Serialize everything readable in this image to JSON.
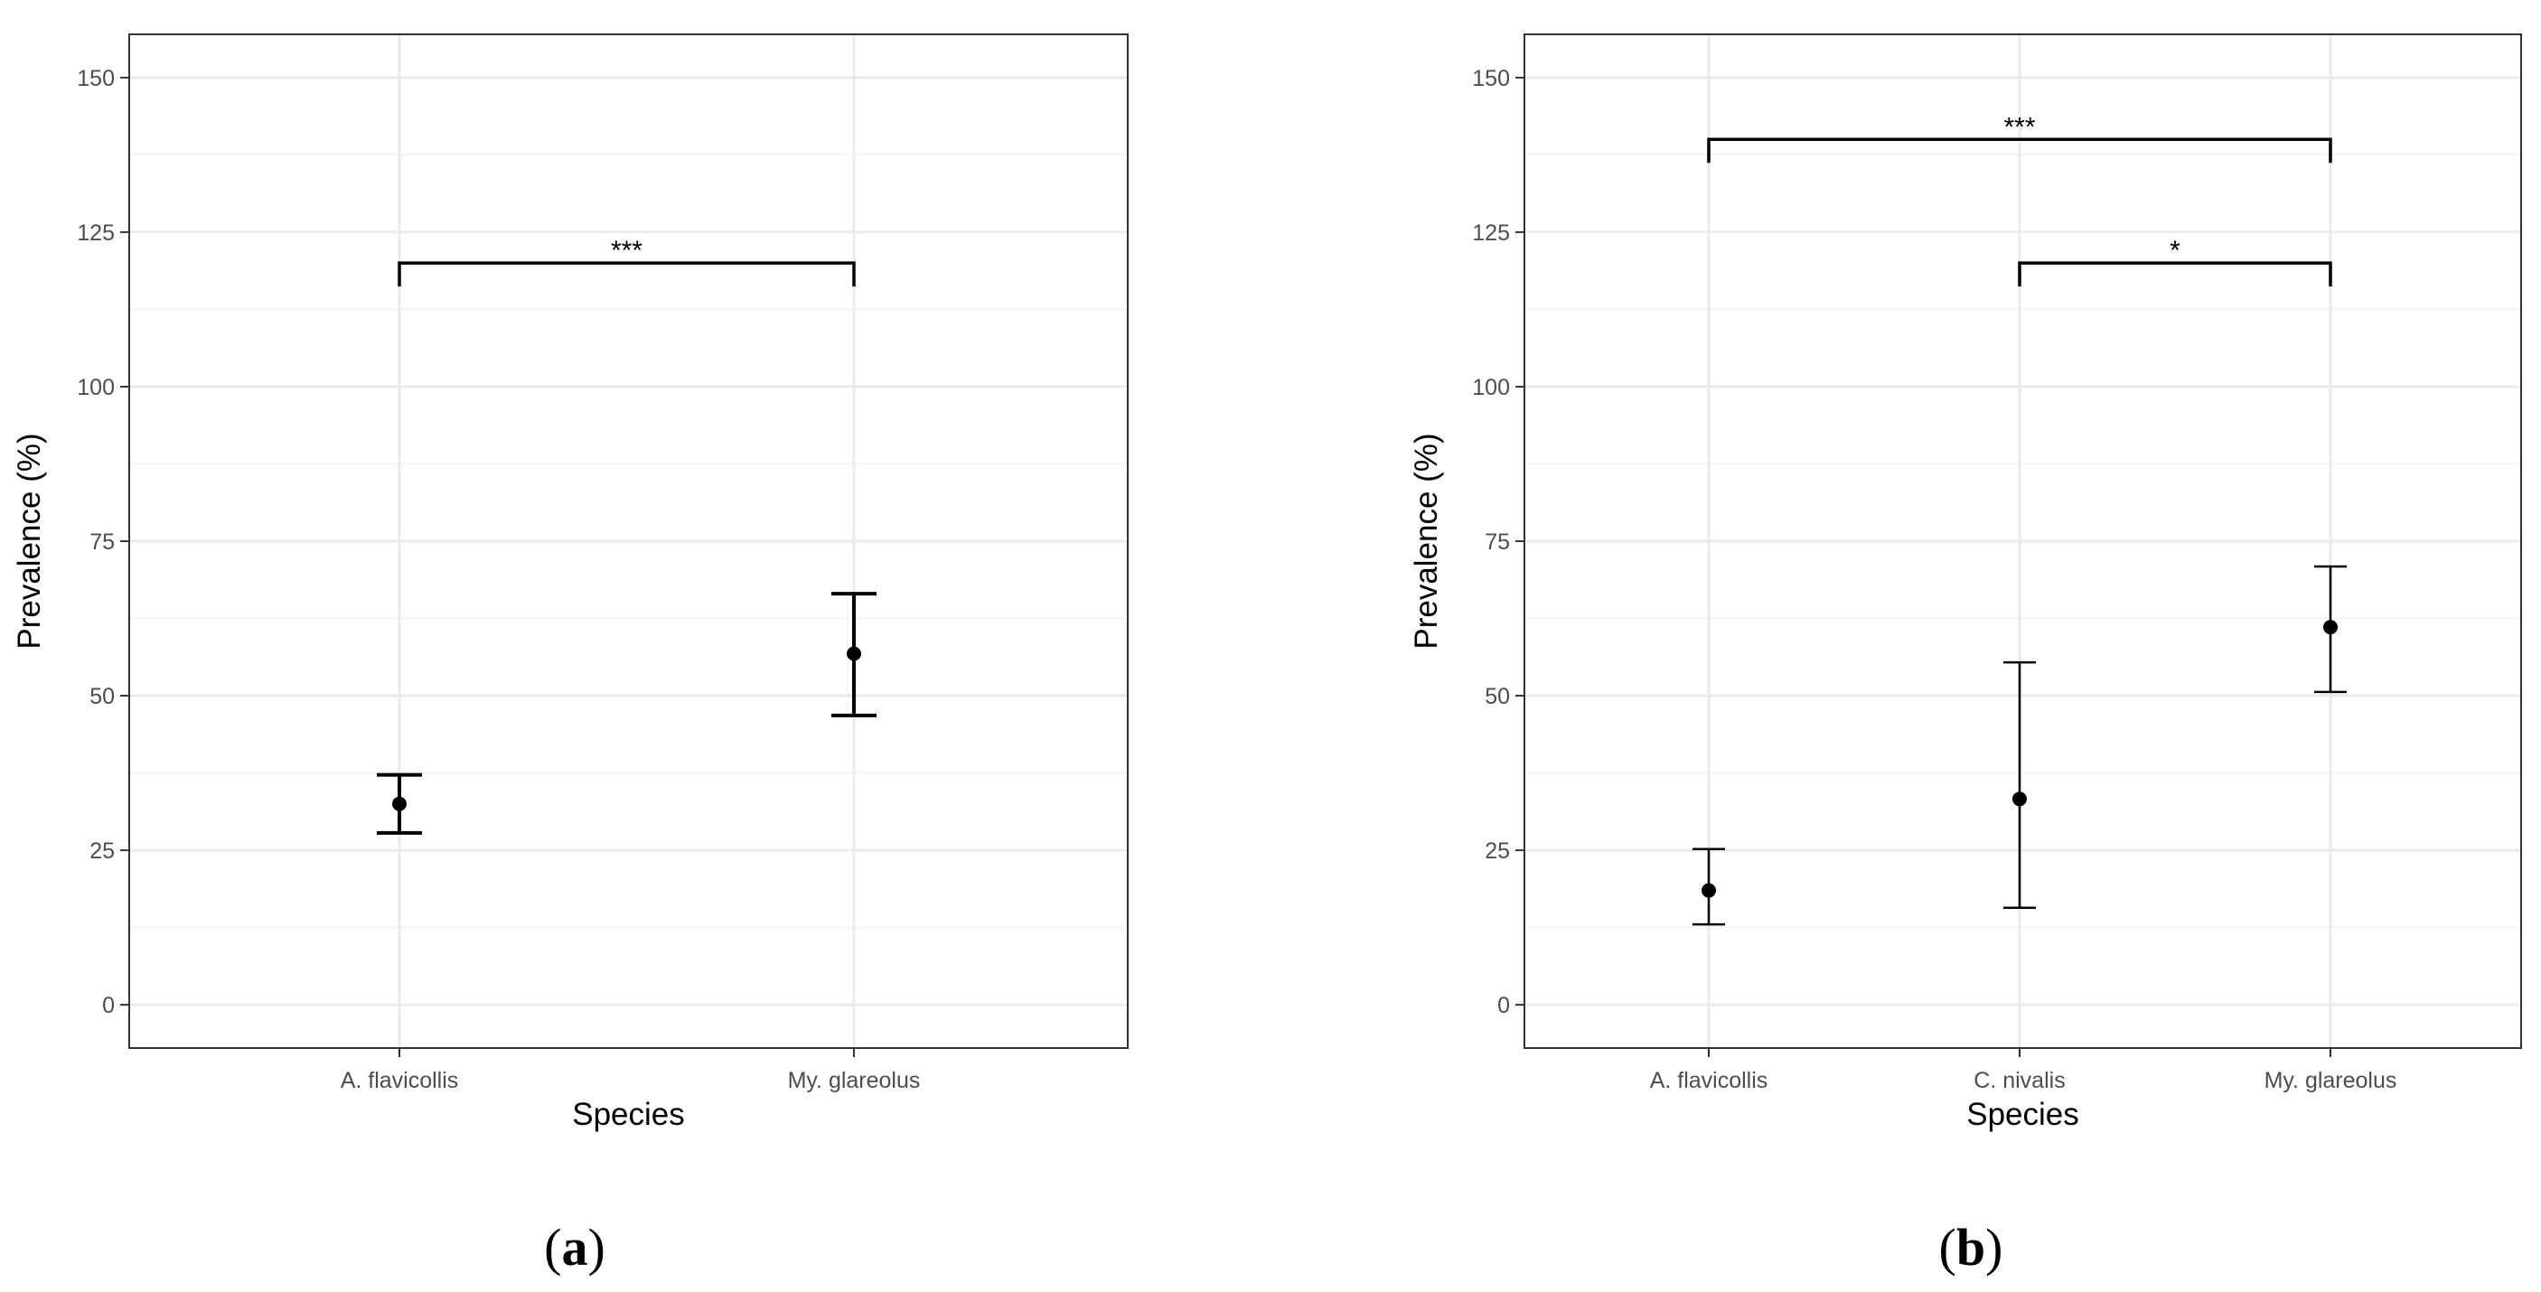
{
  "chart_data": [
    {
      "type": "scatter",
      "panel_label": "a",
      "xlabel": "Species",
      "ylabel": "Prevalence (%)",
      "categories": [
        "A. flavicollis",
        "My. glareolus"
      ],
      "ylim": [
        -7,
        157
      ],
      "yticks": [
        0,
        25,
        50,
        75,
        100,
        125,
        150
      ],
      "grid": true,
      "error_bar_style": "thick",
      "points": [
        {
          "category": "A. flavicollis",
          "y": 32.5,
          "lower": 27.8,
          "upper": 37.2
        },
        {
          "category": "My. glareolus",
          "y": 56.8,
          "lower": 46.8,
          "upper": 66.5
        }
      ],
      "significance": [
        {
          "from": "A. flavicollis",
          "to": "My. glareolus",
          "y": 120,
          "label": "***"
        }
      ]
    },
    {
      "type": "scatter",
      "panel_label": "b",
      "xlabel": "Species",
      "ylabel": "Prevalence (%)",
      "categories": [
        "A. flavicollis",
        "C. nivalis",
        "My. glareolus"
      ],
      "ylim": [
        -7,
        157
      ],
      "yticks": [
        0,
        25,
        50,
        75,
        100,
        125,
        150
      ],
      "grid": true,
      "error_bar_style": "thin",
      "points": [
        {
          "category": "A. flavicollis",
          "y": 18.5,
          "lower": 13.0,
          "upper": 25.2
        },
        {
          "category": "C. nivalis",
          "y": 33.3,
          "lower": 15.7,
          "upper": 55.4
        },
        {
          "category": "My. glareolus",
          "y": 61.1,
          "lower": 50.6,
          "upper": 70.9
        }
      ],
      "significance": [
        {
          "from": "A. flavicollis",
          "to": "My. glareolus",
          "y": 140,
          "label": "***"
        },
        {
          "from": "C. nivalis",
          "to": "My. glareolus",
          "y": 120,
          "label": "*"
        }
      ]
    }
  ],
  "colors": {
    "mark": "#000000",
    "grid_major": "#ebebeb",
    "grid_minor": "#f4f4f4",
    "border": "#333333",
    "tick_label": "#4d4d4d"
  }
}
